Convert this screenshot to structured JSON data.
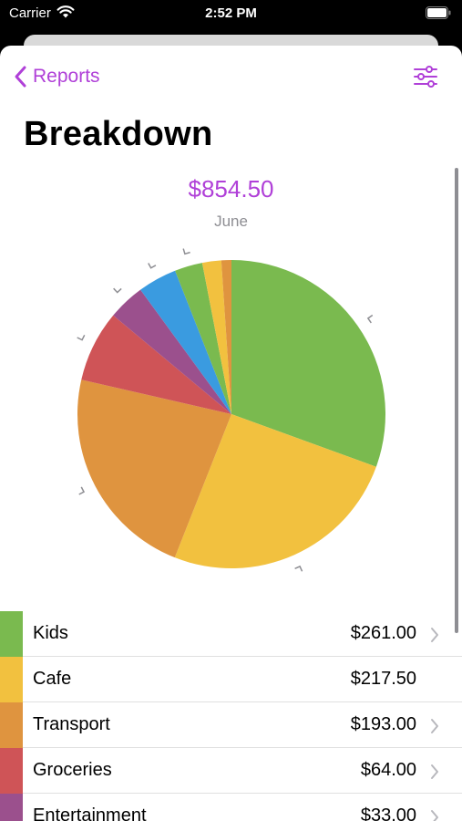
{
  "status_bar": {
    "carrier": "Carrier",
    "time": "2:52 PM"
  },
  "nav": {
    "back_label": "Reports"
  },
  "page": {
    "title": "Breakdown",
    "total": "$854.50",
    "period": "June"
  },
  "colors": {
    "accent": "#b040d8"
  },
  "chart_data": {
    "type": "pie",
    "slices": [
      {
        "name": "Kids",
        "value": 261.0,
        "color": "#7aba4f"
      },
      {
        "name": "Cafe",
        "value": 217.5,
        "color": "#f2c13f"
      },
      {
        "name": "Transport",
        "value": 193.0,
        "color": "#df943f"
      },
      {
        "name": "Groceries",
        "value": 64.0,
        "color": "#cf5457"
      },
      {
        "name": "Entertainment",
        "value": 33.0,
        "color": "#9b508d"
      },
      {
        "name": "",
        "value": 35.0,
        "color": "#3a9be0"
      },
      {
        "name": "",
        "value": 25.0,
        "color": "#7aba4f"
      },
      {
        "name": "",
        "value": 17.0,
        "color": "#f2c13f"
      },
      {
        "name": "",
        "value": 9.0,
        "color": "#df943f"
      }
    ]
  },
  "categories": [
    {
      "name": "Kids",
      "amount": "$261.00",
      "color": "#7aba4f",
      "chevron": true
    },
    {
      "name": "Cafe",
      "amount": "$217.50",
      "color": "#f2c13f",
      "chevron": false
    },
    {
      "name": "Transport",
      "amount": "$193.00",
      "color": "#df943f",
      "chevron": true
    },
    {
      "name": "Groceries",
      "amount": "$64.00",
      "color": "#cf5457",
      "chevron": true
    },
    {
      "name": "Entertainment",
      "amount": "$33.00",
      "color": "#9b508d",
      "chevron": true
    }
  ]
}
